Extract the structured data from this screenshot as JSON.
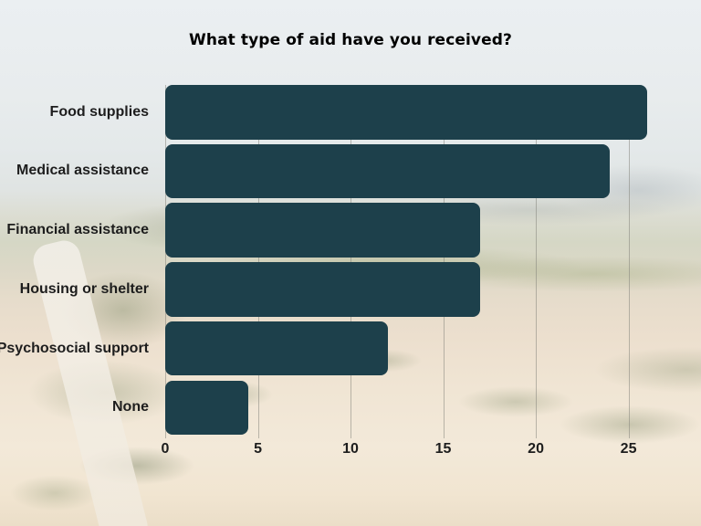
{
  "title": "What type of aid have you received?",
  "colors": {
    "bar": "#1d404b",
    "grid_line": "#7d7d76",
    "text": "#1d1d1d"
  },
  "background": {
    "description": "faded aerial photo of flooded farmland with road and trees"
  },
  "chart_data": {
    "type": "bar",
    "orientation": "horizontal",
    "title": "What type of aid have you received?",
    "categories": [
      "Food supplies",
      "Medical assistance",
      "Financial assistance",
      "Housing or shelter",
      "Psychosocial support",
      "None"
    ],
    "values": [
      26,
      24,
      17,
      17,
      12,
      4.5
    ],
    "xlabel": "",
    "ylabel": "",
    "x_ticks": [
      0,
      5,
      10,
      15,
      20,
      25
    ],
    "xlim": [
      0,
      26.35
    ],
    "grid": "vertical",
    "legend": "none",
    "bar_color": "#1d404b"
  }
}
